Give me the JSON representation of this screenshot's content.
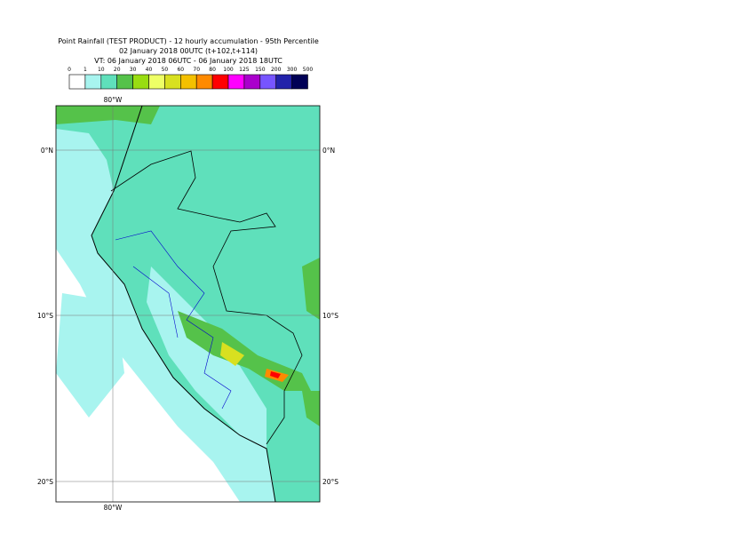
{
  "header": {
    "title_lines": [
      "Point Rainfall (TEST PRODUCT) - 12 hourly accumulation - 95th Percentile",
      "02 January 2018 00UTC (t+102,t+114)",
      "VT: 06 January 2018 06UTC - 06 January 2018 18UTC"
    ]
  },
  "legend": {
    "levels": [
      0,
      1,
      10,
      20,
      30,
      40,
      50,
      60,
      70,
      80,
      100,
      125,
      150,
      200,
      300,
      500
    ],
    "colors": [
      "#ffffff",
      "#a8f4ef",
      "#5fe0bb",
      "#55c24a",
      "#99dd11",
      "#eeff66",
      "#d8e020",
      "#f4c000",
      "#ff8a00",
      "#ff0000",
      "#ff00ff",
      "#aa00cc",
      "#7755ff",
      "#2222aa",
      "#000055"
    ]
  },
  "map": {
    "lat_labels": [
      "0°N",
      "10°S",
      "20°S"
    ],
    "lon_labels": [
      "80°W"
    ]
  }
}
